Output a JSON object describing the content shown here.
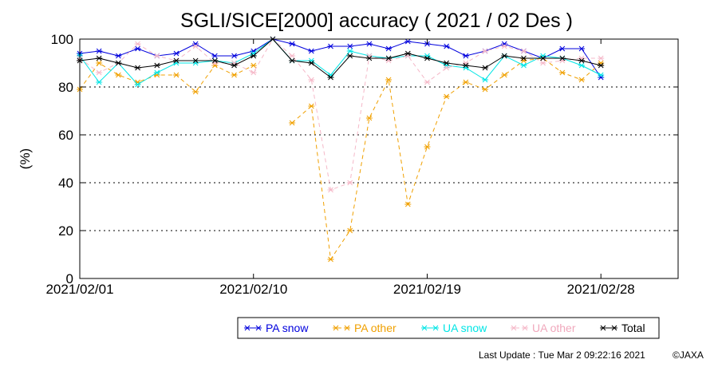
{
  "chart_data": {
    "type": "line",
    "title": "SGLI/SICE[2000] accuracy ( 2021 / 02 Des )",
    "xlabel": "",
    "ylabel": "(%)",
    "ylim": [
      0,
      100
    ],
    "yticks": [
      0,
      20,
      40,
      60,
      80,
      100
    ],
    "xlim": [
      "2021/02/01",
      "2021/03/04"
    ],
    "xticks": [
      "2021/02/01",
      "2021/02/10",
      "2021/02/19",
      "2021/02/28"
    ],
    "grid": "horizontal dotted",
    "legend_position": "bottom",
    "x": [
      "2021/02/01",
      "2021/02/02",
      "2021/02/03",
      "2021/02/04",
      "2021/02/05",
      "2021/02/06",
      "2021/02/07",
      "2021/02/08",
      "2021/02/09",
      "2021/02/10",
      "2021/02/11",
      "2021/02/12",
      "2021/02/13",
      "2021/02/14",
      "2021/02/15",
      "2021/02/16",
      "2021/02/17",
      "2021/02/18",
      "2021/02/19",
      "2021/02/20",
      "2021/02/21",
      "2021/02/22",
      "2021/02/23",
      "2021/02/24",
      "2021/02/25",
      "2021/02/26",
      "2021/02/27",
      "2021/02/28"
    ],
    "series": [
      {
        "name": "PA snow",
        "color": "#0000dd",
        "dash": "solid",
        "values": [
          94,
          95,
          93,
          96,
          93,
          94,
          98,
          93,
          93,
          95,
          100,
          98,
          95,
          97,
          97,
          98,
          96,
          99,
          98,
          97,
          93,
          95,
          98,
          95,
          92,
          96,
          96,
          84
        ]
      },
      {
        "name": "PA other",
        "color": "#f0a000",
        "dash": "dashed",
        "values": [
          79,
          90,
          85,
          82,
          85,
          85,
          78,
          89,
          85,
          89,
          null,
          65,
          72,
          8,
          20,
          67,
          83,
          31,
          55,
          76,
          82,
          79,
          85,
          91,
          92,
          86,
          83,
          90
        ]
      },
      {
        "name": "UA snow",
        "color": "#00e5e5",
        "dash": "solid",
        "values": [
          93,
          82,
          90,
          81,
          86,
          90,
          90,
          91,
          90,
          94,
          100,
          91,
          91,
          85,
          95,
          93,
          92,
          93,
          93,
          89,
          88,
          83,
          93,
          89,
          93,
          92,
          89,
          85
        ]
      },
      {
        "name": "UA other",
        "color": "#f5b8c8",
        "dash": "dashed",
        "values": [
          92,
          86,
          90,
          98,
          93,
          91,
          97,
          90,
          90,
          86,
          100,
          93,
          83,
          37,
          40,
          93,
          91,
          93,
          82,
          88,
          90,
          95,
          97,
          95,
          90,
          91,
          92,
          92
        ]
      },
      {
        "name": "Total",
        "color": "#000000",
        "dash": "solid",
        "values": [
          91,
          92,
          90,
          88,
          89,
          91,
          91,
          91,
          89,
          93,
          100,
          91,
          90,
          84,
          93,
          92,
          92,
          94,
          92,
          90,
          89,
          88,
          93,
          92,
          92,
          92,
          91,
          89
        ]
      }
    ]
  },
  "footer": {
    "update": "Last Update : Tue Mar  2 09:22:16 2021",
    "copyright": "©JAXA"
  }
}
